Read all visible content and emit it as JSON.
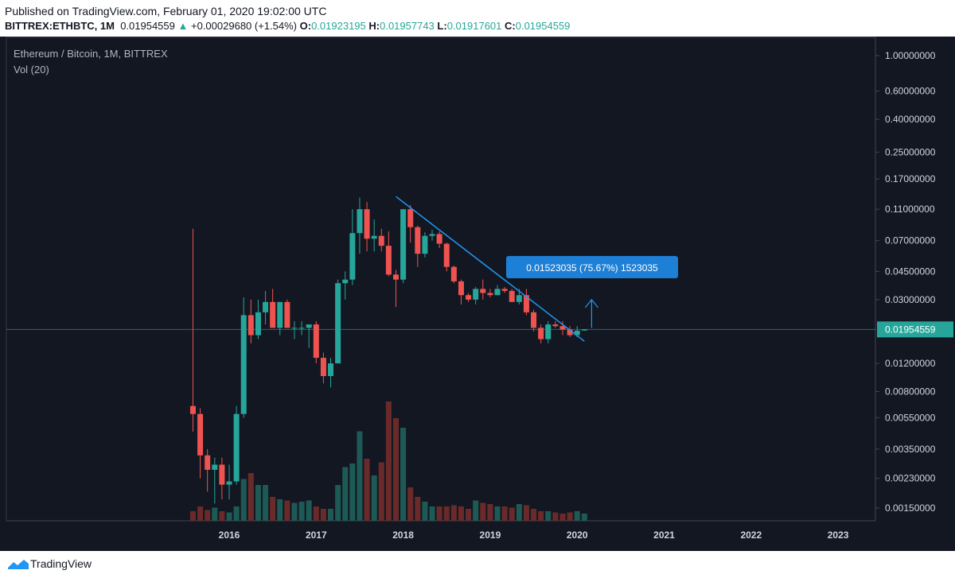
{
  "header": {
    "published": "Published on TradingView.com, February 01, 2020 19:02:00 UTC",
    "symbol": "BITTREX:ETHBTC, 1M",
    "last": "0.01954559",
    "change_arrow": "▲",
    "change": "+0.00029680 (+1.54%)",
    "o_label": "O:",
    "o_value": "0.01923195",
    "h_label": "H:",
    "h_value": "0.01957743",
    "l_label": "L:",
    "l_value": "0.01917601",
    "c_label": "C:",
    "c_value": "0.01954559"
  },
  "legend": {
    "title": "Ethereum / Bitcoin, 1M, BITTREX",
    "volume": "Vol (20)"
  },
  "footer": {
    "brand": "TradingView",
    "logo_icon": "tradingview-logo-icon"
  },
  "colors": {
    "background": "#131722",
    "up": "#26a69a",
    "down": "#ef5350",
    "vol_up": "#1e5a55",
    "vol_down": "#6b2a2a",
    "trendline": "#2196f3",
    "price_line": "#26a69a",
    "grid": "#2a2e39",
    "text": "#b2b5be"
  },
  "chart_data": {
    "type": "candlestick",
    "title": "Ethereum / Bitcoin, 1M, BITTREX",
    "scale": "log",
    "y_ticks": [
      "1.00000000",
      "0.60000000",
      "0.40000000",
      "0.25000000",
      "0.17000000",
      "0.11000000",
      "0.07000000",
      "0.04500000",
      "0.03000000",
      "0.01954559",
      "0.01200000",
      "0.00800000",
      "0.00550000",
      "0.00350000",
      "0.00230000",
      "0.00150000"
    ],
    "y_tick_values": [
      1.0,
      0.6,
      0.4,
      0.25,
      0.17,
      0.11,
      0.07,
      0.045,
      0.03,
      0.012,
      0.008,
      0.0055,
      0.0035,
      0.0023,
      0.0015
    ],
    "ylim": [
      0.00125,
      1.3
    ],
    "x_ticks": [
      "2016",
      "2017",
      "2018",
      "2019",
      "2020",
      "2021",
      "2022",
      "2023"
    ],
    "x_tick_years": [
      2016,
      2017,
      2018,
      2019,
      2020,
      2021,
      2022,
      2023
    ],
    "last_price": 0.01954559,
    "last_price_label": "0.01954559",
    "candles": [
      {
        "d": "2015-08",
        "o": 0.0065,
        "h": 0.083,
        "l": 0.0045,
        "c": 0.0058
      },
      {
        "d": "2015-09",
        "o": 0.0058,
        "h": 0.0063,
        "l": 0.0023,
        "c": 0.0032
      },
      {
        "d": "2015-10",
        "o": 0.0032,
        "h": 0.0035,
        "l": 0.0019,
        "c": 0.0026
      },
      {
        "d": "2015-11",
        "o": 0.0026,
        "h": 0.0031,
        "l": 0.0016,
        "c": 0.0028
      },
      {
        "d": "2015-12",
        "o": 0.0028,
        "h": 0.0031,
        "l": 0.0017,
        "c": 0.0021
      },
      {
        "d": "2016-01",
        "o": 0.0021,
        "h": 0.0028,
        "l": 0.0017,
        "c": 0.0022
      },
      {
        "d": "2016-02",
        "o": 0.0022,
        "h": 0.0065,
        "l": 0.0021,
        "c": 0.0058
      },
      {
        "d": "2016-03",
        "o": 0.0058,
        "h": 0.031,
        "l": 0.0055,
        "c": 0.024
      },
      {
        "d": "2016-04",
        "o": 0.024,
        "h": 0.03,
        "l": 0.016,
        "c": 0.018
      },
      {
        "d": "2016-05",
        "o": 0.018,
        "h": 0.03,
        "l": 0.017,
        "c": 0.025
      },
      {
        "d": "2016-06",
        "o": 0.025,
        "h": 0.034,
        "l": 0.021,
        "c": 0.029
      },
      {
        "d": "2016-07",
        "o": 0.029,
        "h": 0.035,
        "l": 0.02,
        "c": 0.02
      },
      {
        "d": "2016-08",
        "o": 0.02,
        "h": 0.028,
        "l": 0.018,
        "c": 0.029
      },
      {
        "d": "2016-09",
        "o": 0.029,
        "h": 0.03,
        "l": 0.02,
        "c": 0.02
      },
      {
        "d": "2016-10",
        "o": 0.02,
        "h": 0.022,
        "l": 0.017,
        "c": 0.02
      },
      {
        "d": "2016-11",
        "o": 0.02,
        "h": 0.022,
        "l": 0.018,
        "c": 0.02
      },
      {
        "d": "2016-12",
        "o": 0.02,
        "h": 0.021,
        "l": 0.015,
        "c": 0.021
      },
      {
        "d": "2017-01",
        "o": 0.021,
        "h": 0.022,
        "l": 0.012,
        "c": 0.013
      },
      {
        "d": "2017-02",
        "o": 0.013,
        "h": 0.014,
        "l": 0.009,
        "c": 0.01
      },
      {
        "d": "2017-03",
        "o": 0.01,
        "h": 0.013,
        "l": 0.0085,
        "c": 0.012
      },
      {
        "d": "2017-04",
        "o": 0.012,
        "h": 0.04,
        "l": 0.012,
        "c": 0.038
      },
      {
        "d": "2017-05",
        "o": 0.038,
        "h": 0.045,
        "l": 0.03,
        "c": 0.04
      },
      {
        "d": "2017-06",
        "o": 0.04,
        "h": 0.11,
        "l": 0.037,
        "c": 0.078
      },
      {
        "d": "2017-07",
        "o": 0.078,
        "h": 0.13,
        "l": 0.058,
        "c": 0.11
      },
      {
        "d": "2017-08",
        "o": 0.11,
        "h": 0.122,
        "l": 0.06,
        "c": 0.072
      },
      {
        "d": "2017-09",
        "o": 0.072,
        "h": 0.095,
        "l": 0.06,
        "c": 0.075
      },
      {
        "d": "2017-10",
        "o": 0.075,
        "h": 0.083,
        "l": 0.06,
        "c": 0.065
      },
      {
        "d": "2017-11",
        "o": 0.065,
        "h": 0.08,
        "l": 0.042,
        "c": 0.043
      },
      {
        "d": "2017-12",
        "o": 0.043,
        "h": 0.046,
        "l": 0.027,
        "c": 0.04
      },
      {
        "d": "2018-01",
        "o": 0.04,
        "h": 0.11,
        "l": 0.038,
        "c": 0.11
      },
      {
        "d": "2018-02",
        "o": 0.11,
        "h": 0.117,
        "l": 0.068,
        "c": 0.085
      },
      {
        "d": "2018-03",
        "o": 0.085,
        "h": 0.087,
        "l": 0.048,
        "c": 0.058
      },
      {
        "d": "2018-04",
        "o": 0.058,
        "h": 0.079,
        "l": 0.055,
        "c": 0.075
      },
      {
        "d": "2018-05",
        "o": 0.075,
        "h": 0.082,
        "l": 0.07,
        "c": 0.077
      },
      {
        "d": "2018-06",
        "o": 0.077,
        "h": 0.08,
        "l": 0.063,
        "c": 0.067
      },
      {
        "d": "2018-07",
        "o": 0.067,
        "h": 0.068,
        "l": 0.045,
        "c": 0.048
      },
      {
        "d": "2018-08",
        "o": 0.048,
        "h": 0.049,
        "l": 0.038,
        "c": 0.039
      },
      {
        "d": "2018-09",
        "o": 0.039,
        "h": 0.04,
        "l": 0.028,
        "c": 0.032
      },
      {
        "d": "2018-10",
        "o": 0.032,
        "h": 0.033,
        "l": 0.029,
        "c": 0.03
      },
      {
        "d": "2018-11",
        "o": 0.03,
        "h": 0.036,
        "l": 0.028,
        "c": 0.035
      },
      {
        "d": "2018-12",
        "o": 0.035,
        "h": 0.04,
        "l": 0.03,
        "c": 0.033
      },
      {
        "d": "2019-01",
        "o": 0.033,
        "h": 0.035,
        "l": 0.031,
        "c": 0.032
      },
      {
        "d": "2019-02",
        "o": 0.032,
        "h": 0.037,
        "l": 0.032,
        "c": 0.035
      },
      {
        "d": "2019-03",
        "o": 0.035,
        "h": 0.036,
        "l": 0.033,
        "c": 0.034
      },
      {
        "d": "2019-04",
        "o": 0.034,
        "h": 0.035,
        "l": 0.029,
        "c": 0.029
      },
      {
        "d": "2019-05",
        "o": 0.029,
        "h": 0.035,
        "l": 0.028,
        "c": 0.032
      },
      {
        "d": "2019-06",
        "o": 0.032,
        "h": 0.035,
        "l": 0.024,
        "c": 0.025
      },
      {
        "d": "2019-07",
        "o": 0.025,
        "h": 0.026,
        "l": 0.019,
        "c": 0.02
      },
      {
        "d": "2019-08",
        "o": 0.02,
        "h": 0.021,
        "l": 0.016,
        "c": 0.017
      },
      {
        "d": "2019-09",
        "o": 0.017,
        "h": 0.022,
        "l": 0.016,
        "c": 0.021
      },
      {
        "d": "2019-10",
        "o": 0.021,
        "h": 0.022,
        "l": 0.02,
        "c": 0.0205
      },
      {
        "d": "2019-11",
        "o": 0.0205,
        "h": 0.022,
        "l": 0.018,
        "c": 0.0195
      },
      {
        "d": "2019-12",
        "o": 0.0195,
        "h": 0.0205,
        "l": 0.0175,
        "c": 0.018
      },
      {
        "d": "2020-01",
        "o": 0.018,
        "h": 0.0205,
        "l": 0.0175,
        "c": 0.0192
      },
      {
        "d": "2020-02",
        "o": 0.01923195,
        "h": 0.01957743,
        "l": 0.01917601,
        "c": 0.01954559
      }
    ],
    "volume_relative": [
      0.08,
      0.12,
      0.09,
      0.11,
      0.08,
      0.07,
      0.12,
      0.35,
      0.4,
      0.3,
      0.3,
      0.2,
      0.18,
      0.17,
      0.15,
      0.16,
      0.17,
      0.12,
      0.1,
      0.1,
      0.3,
      0.45,
      0.48,
      0.75,
      0.52,
      0.38,
      0.49,
      1.0,
      0.86,
      0.78,
      0.28,
      0.2,
      0.16,
      0.12,
      0.12,
      0.12,
      0.13,
      0.12,
      0.1,
      0.17,
      0.15,
      0.14,
      0.12,
      0.12,
      0.11,
      0.14,
      0.13,
      0.1,
      0.08,
      0.08,
      0.07,
      0.06,
      0.07,
      0.08,
      0.06
    ],
    "trendline": {
      "from": {
        "d": "2017-12",
        "v": 0.132
      },
      "to": {
        "d": "2020-02",
        "v": 0.0165
      }
    },
    "measure": {
      "label": "0.01523035 (75.67%) 1523035",
      "arrow_from": 0.02,
      "arrow_to": 0.03
    }
  }
}
